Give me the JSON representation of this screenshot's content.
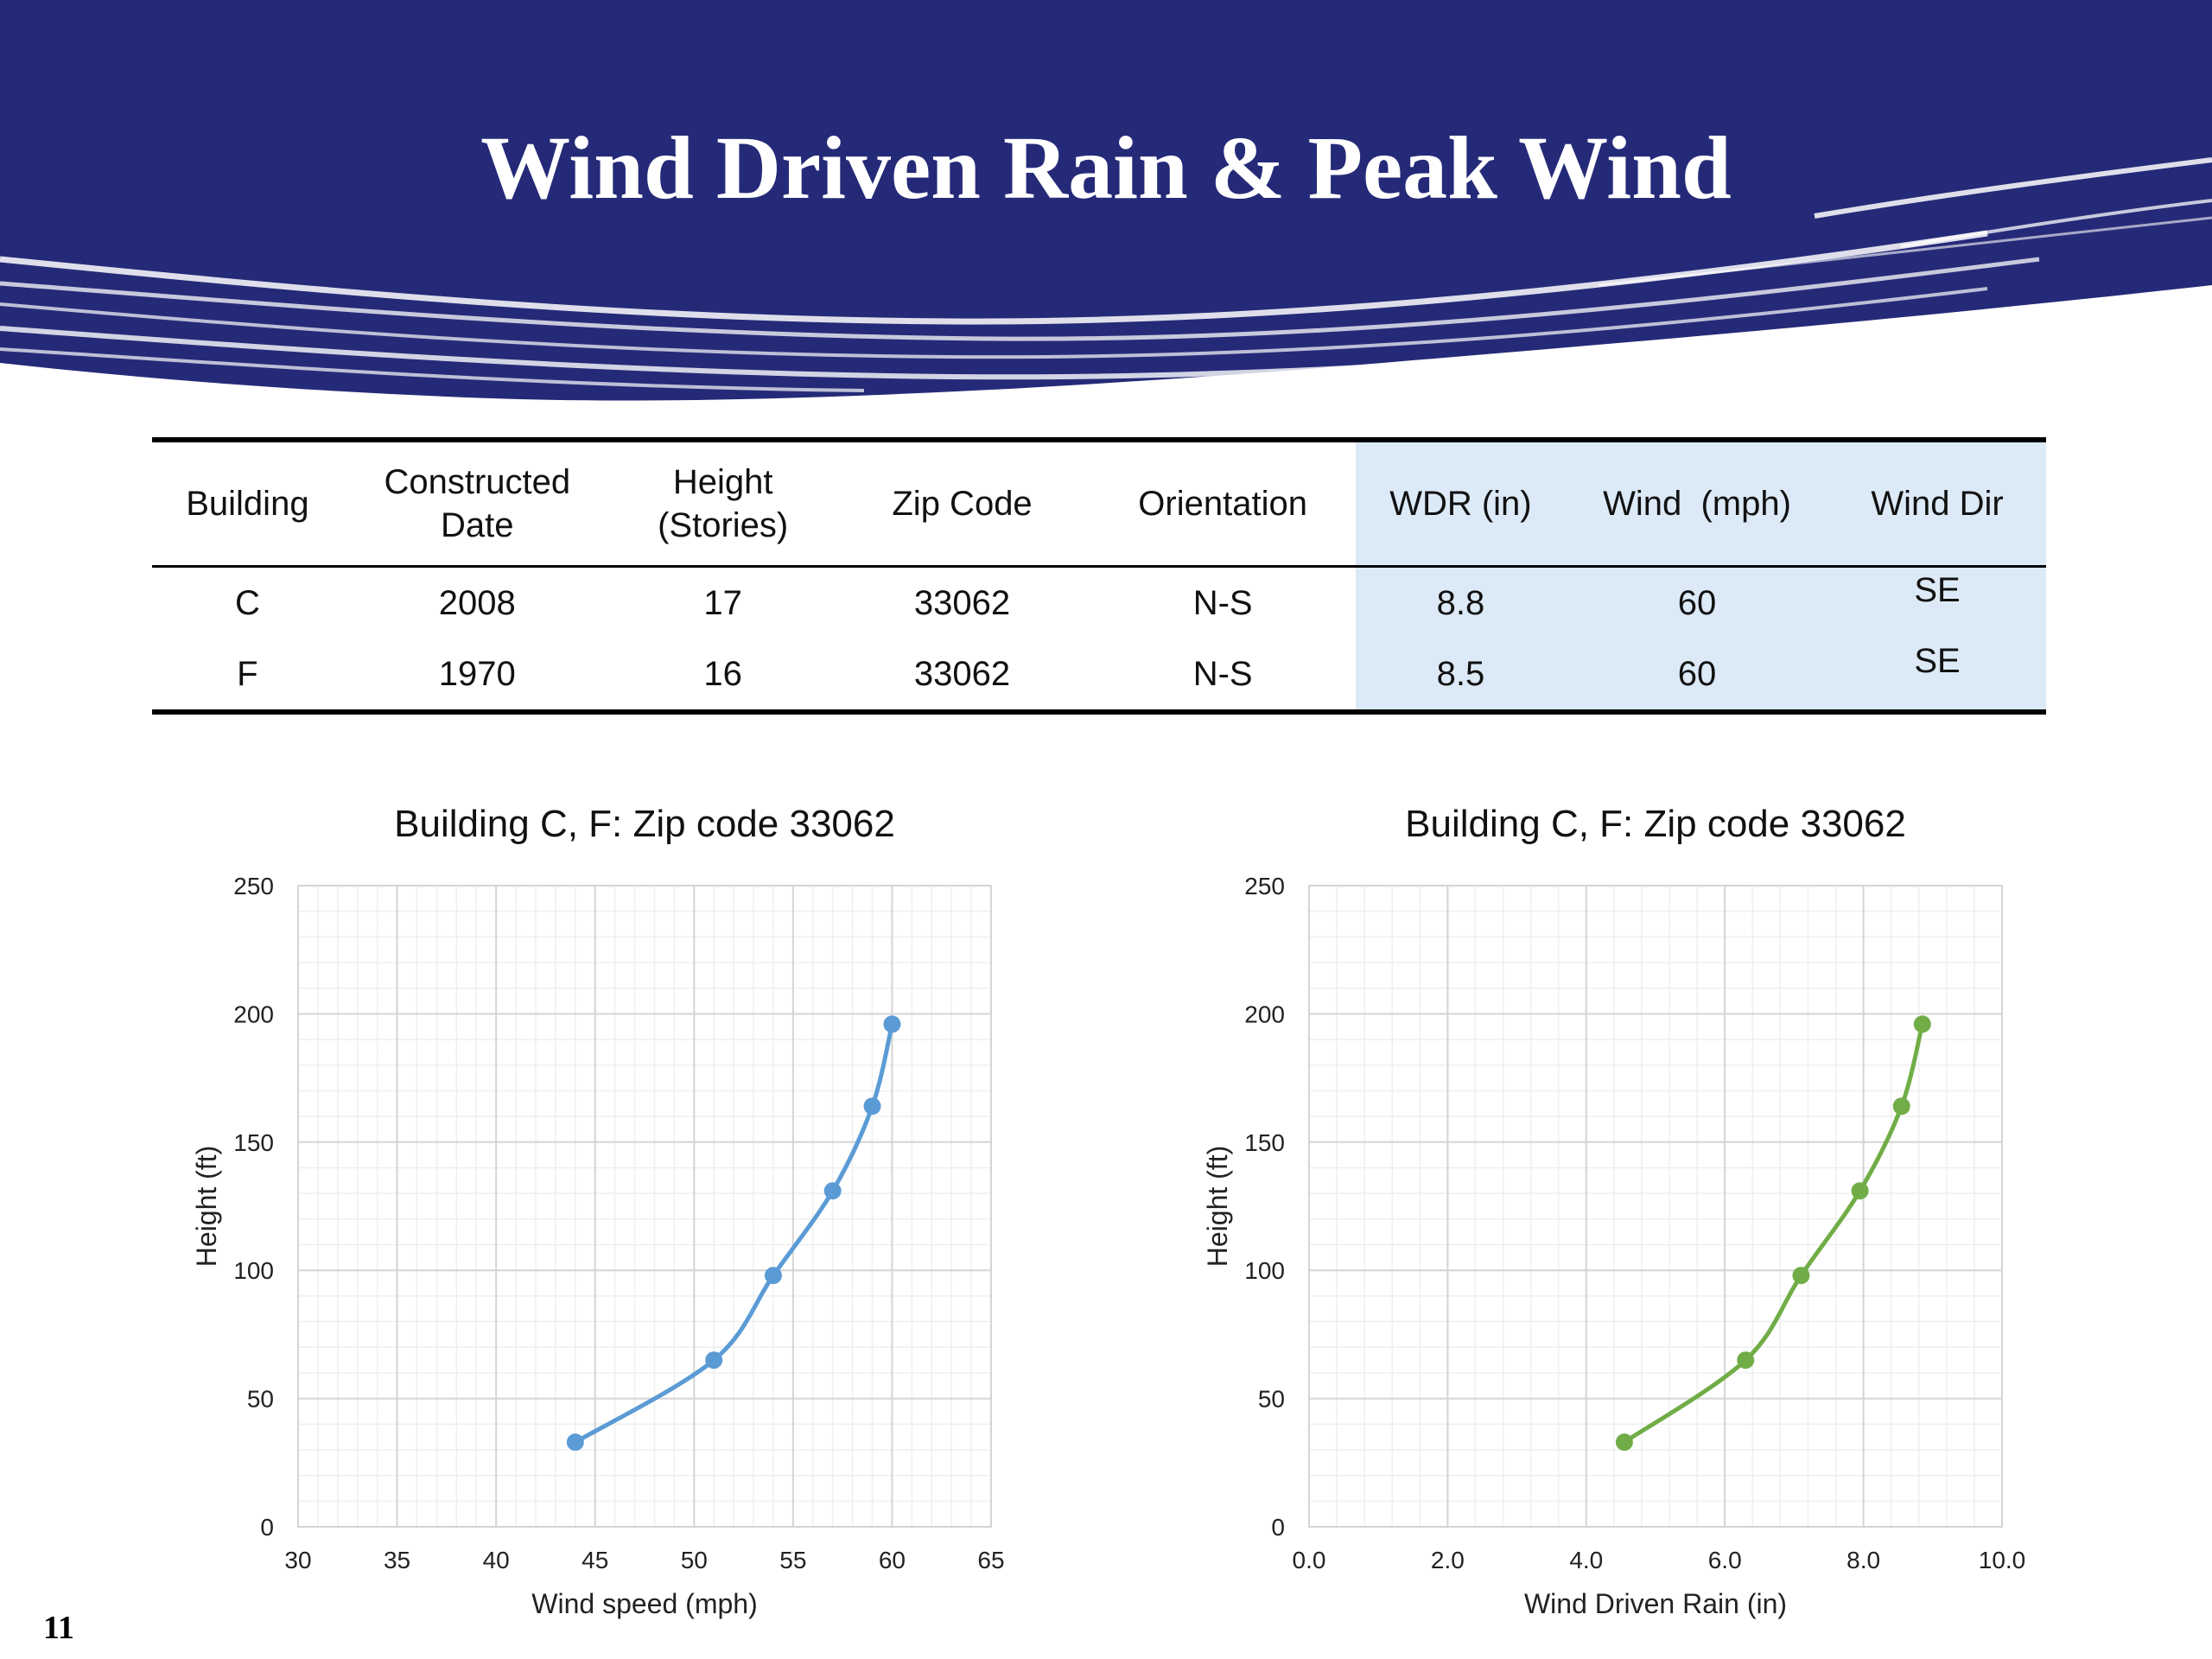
{
  "slide": {
    "title": "Wind Driven Rain & Peak Wind",
    "page_number": "11",
    "colors": {
      "banner": "#252a78",
      "table_highlight": "#dce9f6",
      "wind_series": "#5b9bd5",
      "wdr_series": "#70ad47"
    }
  },
  "table": {
    "headers": [
      "Building",
      "Constructed\nDate",
      "Height\n(Stories)",
      "Zip Code",
      "Orientation",
      "WDR (in)",
      "Wind  (mph)",
      "Wind Dir"
    ],
    "rows": [
      [
        "C",
        "2008",
        "17",
        "33062",
        "N-S",
        "8.8",
        "60",
        "SE"
      ],
      [
        "F",
        "1970",
        "16",
        "33062",
        "N-S",
        "8.5",
        "60",
        "SE"
      ]
    ]
  },
  "chart_data": [
    {
      "type": "line",
      "title": "Building C, F: Zip code 33062",
      "xlabel": "Wind speed (mph)",
      "ylabel": "Height (ft)",
      "xlim": [
        30,
        65
      ],
      "ylim": [
        0,
        250
      ],
      "xticks": [
        "30",
        "35",
        "40",
        "45",
        "50",
        "55",
        "60",
        "65"
      ],
      "yticks": [
        "0",
        "50",
        "100",
        "150",
        "200",
        "250"
      ],
      "grid": true,
      "legend": "none",
      "color": "#5b9bd5",
      "series": [
        {
          "x": [
            44,
            51,
            54,
            57,
            59,
            60
          ],
          "y": [
            33,
            65,
            98,
            131,
            164,
            196
          ]
        }
      ]
    },
    {
      "type": "line",
      "title": "Building C, F: Zip code 33062",
      "xlabel": "Wind Driven Rain (in)",
      "ylabel": "Height (ft)",
      "xlim": [
        0,
        10
      ],
      "ylim": [
        0,
        250
      ],
      "xticks": [
        "0.0",
        "2.0",
        "4.0",
        "6.0",
        "8.0",
        "10.0"
      ],
      "yticks": [
        "0",
        "50",
        "100",
        "150",
        "200",
        "250"
      ],
      "grid": true,
      "legend": "none",
      "color": "#70ad47",
      "series": [
        {
          "x": [
            4.55,
            6.3,
            7.1,
            7.95,
            8.55,
            8.85
          ],
          "y": [
            33,
            65,
            98,
            131,
            164,
            196
          ]
        }
      ]
    }
  ]
}
